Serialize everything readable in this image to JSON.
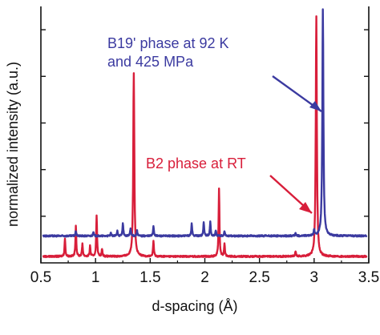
{
  "chart_data": {
    "type": "line",
    "title": "",
    "xlabel": "d-spacing (Å)",
    "ylabel": "normalized intensity (a.u.)",
    "xlim": [
      0.5,
      3.5
    ],
    "ylim": [
      0,
      1
    ],
    "x_ticks": [
      "0.5",
      "1",
      "1.5",
      "2",
      "2.5",
      "3",
      "3.5"
    ],
    "grid": false,
    "colors": {
      "B19": "#3b3aa0",
      "B2": "#d81e3a",
      "axis": "#111111"
    },
    "series": [
      {
        "key": "B19",
        "baseline": 0.105,
        "peaks": [
          {
            "x": 0.82,
            "h": 0.02
          },
          {
            "x": 0.98,
            "h": 0.015
          },
          {
            "x": 1.14,
            "h": 0.01
          },
          {
            "x": 1.2,
            "h": 0.02
          },
          {
            "x": 1.25,
            "h": 0.05
          },
          {
            "x": 1.32,
            "h": 0.03
          },
          {
            "x": 1.38,
            "h": 0.02
          },
          {
            "x": 1.53,
            "h": 0.04
          },
          {
            "x": 1.88,
            "h": 0.05
          },
          {
            "x": 1.99,
            "h": 0.055
          },
          {
            "x": 2.05,
            "h": 0.055
          },
          {
            "x": 2.1,
            "h": 0.02
          },
          {
            "x": 2.18,
            "h": 0.02
          },
          {
            "x": 2.83,
            "h": 0.01
          },
          {
            "x": 3.0,
            "h": 0.025
          },
          {
            "x": 3.08,
            "h": 0.885
          }
        ]
      },
      {
        "key": "B2",
        "baseline": 0.025,
        "peaks": [
          {
            "x": 0.72,
            "h": 0.07
          },
          {
            "x": 0.82,
            "h": 0.12
          },
          {
            "x": 0.88,
            "h": 0.05
          },
          {
            "x": 0.95,
            "h": 0.04
          },
          {
            "x": 1.01,
            "h": 0.16
          },
          {
            "x": 1.06,
            "h": 0.03
          },
          {
            "x": 1.35,
            "h": 0.715
          },
          {
            "x": 1.53,
            "h": 0.06
          },
          {
            "x": 2.13,
            "h": 0.265
          },
          {
            "x": 2.18,
            "h": 0.05
          },
          {
            "x": 2.83,
            "h": 0.02
          },
          {
            "x": 3.02,
            "h": 0.935
          }
        ]
      }
    ],
    "annotations": [
      {
        "text": "B19' phase at 92 K",
        "series": "B19"
      },
      {
        "text": "and 425 MPa",
        "series": "B19"
      },
      {
        "text": "B2 phase at RT",
        "series": "B2"
      }
    ]
  }
}
